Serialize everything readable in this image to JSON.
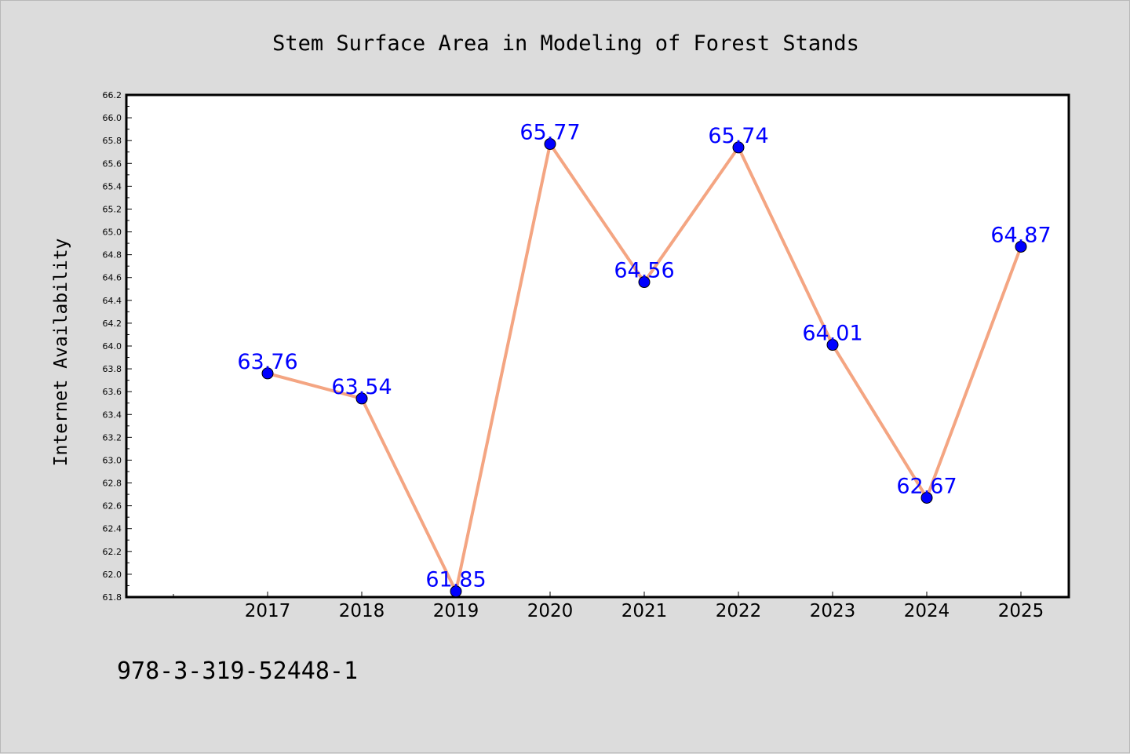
{
  "chart_data": {
    "type": "line",
    "title": "Stem Surface Area in Modeling of Forest Stands",
    "ylabel": "Internet Availability",
    "xlabel": "",
    "categories": [
      "2017",
      "2018",
      "2019",
      "2020",
      "2021",
      "2022",
      "2023",
      "2024",
      "2025"
    ],
    "series": [
      {
        "values": [
          63.76,
          63.54,
          61.85,
          65.77,
          64.56,
          65.74,
          64.01,
          62.67,
          64.87
        ],
        "labels": [
          "63.76",
          "63.54",
          "61.85",
          "65.77",
          "64.56",
          "65.74",
          "64.01",
          "62.67",
          "64.87"
        ]
      }
    ],
    "ylim": [
      61.8,
      66.2
    ],
    "yticks": [
      "61.8",
      "62.0",
      "62.2",
      "62.4",
      "62.6",
      "62.8",
      "63.0",
      "63.2",
      "63.4",
      "63.6",
      "63.8",
      "64.0",
      "64.2",
      "64.4",
      "64.6",
      "64.8",
      "65.0",
      "65.2",
      "65.4",
      "65.6",
      "65.8",
      "66.0",
      "66.2"
    ],
    "grid": false,
    "line_color": "#f4a582",
    "marker_color": "#0000ff",
    "label_color": "#0000ff",
    "plot_background": "#ffffff",
    "page_background": "#dcdcdc"
  },
  "footer": {
    "text": "978-3-319-52448-1"
  }
}
